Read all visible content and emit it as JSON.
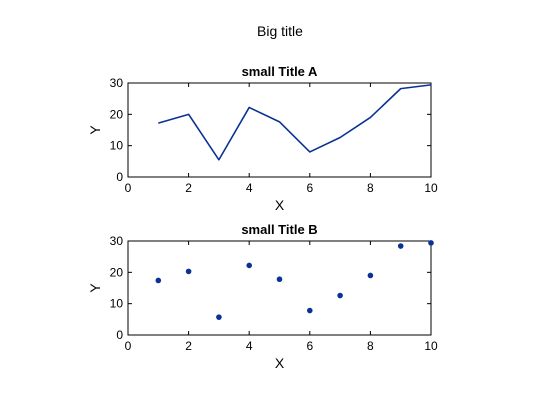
{
  "figure_title": "Big title",
  "colors": {
    "series": "#0a3296"
  },
  "chart_data": [
    {
      "type": "line",
      "title": "small Title A",
      "xlabel": "X",
      "ylabel": "Y",
      "xlim": [
        0,
        10
      ],
      "ylim": [
        0,
        30
      ],
      "xticks": [
        0,
        2,
        4,
        6,
        8,
        10
      ],
      "yticks": [
        0,
        10,
        20,
        30
      ],
      "grid": false,
      "x": [
        1,
        2,
        3,
        4,
        5,
        6,
        7,
        8,
        9,
        10
      ],
      "y": [
        17.2,
        20.0,
        5.5,
        22.2,
        17.6,
        8.0,
        12.6,
        19.0,
        28.2,
        29.4
      ]
    },
    {
      "type": "scatter",
      "title": "small Title B",
      "xlabel": "X",
      "ylabel": "Y",
      "xlim": [
        0,
        10
      ],
      "ylim": [
        0,
        30
      ],
      "xticks": [
        0,
        2,
        4,
        6,
        8,
        10
      ],
      "yticks": [
        0,
        10,
        20,
        30
      ],
      "grid": false,
      "x": [
        1,
        2,
        3,
        4,
        5,
        6,
        7,
        8,
        9,
        10
      ],
      "y": [
        17.4,
        20.3,
        5.7,
        22.2,
        17.8,
        7.8,
        12.6,
        19.0,
        28.4,
        29.4
      ]
    }
  ]
}
